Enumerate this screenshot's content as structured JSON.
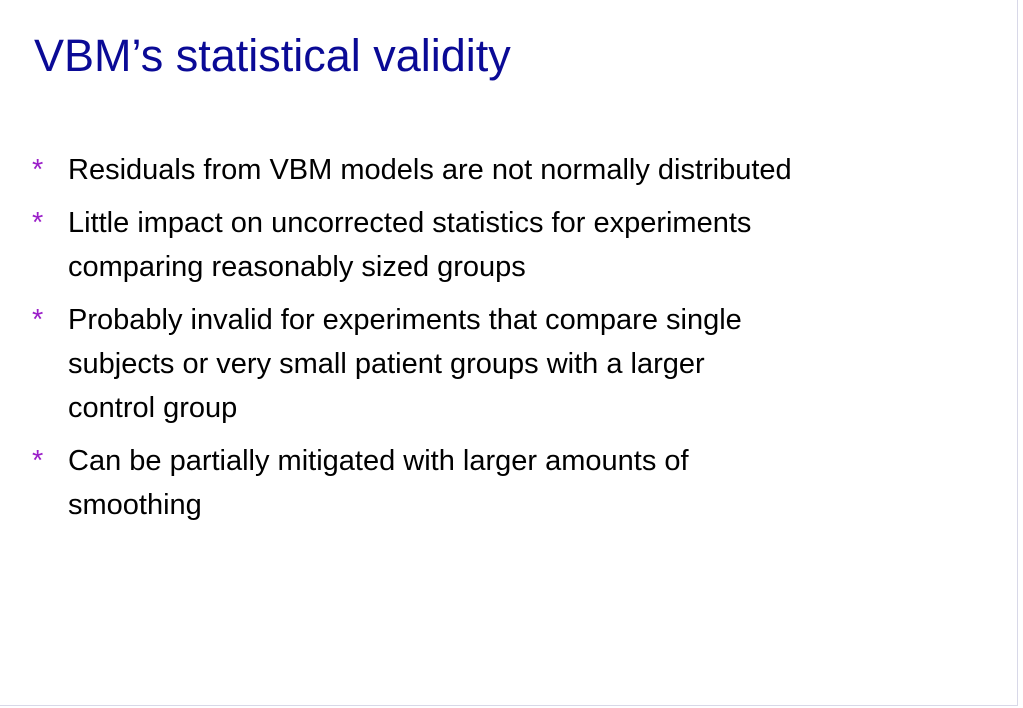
{
  "header": {
    "title": "VBM’s statistical validity"
  },
  "bullets": [
    {
      "marker": "*",
      "lines": [
        "Residuals from VBM models are not normally distributed"
      ]
    },
    {
      "marker": "*",
      "lines": [
        "Little impact on uncorrected statistics for experiments",
        "comparing reasonably sized groups"
      ]
    },
    {
      "marker": "*",
      "lines": [
        "Probably invalid for experiments that compare single",
        "subjects or very small patient groups with a larger",
        "control group"
      ]
    },
    {
      "marker": "*",
      "lines": [
        "Can be partially mitigated with larger amounts of",
        "smoothing"
      ]
    }
  ]
}
